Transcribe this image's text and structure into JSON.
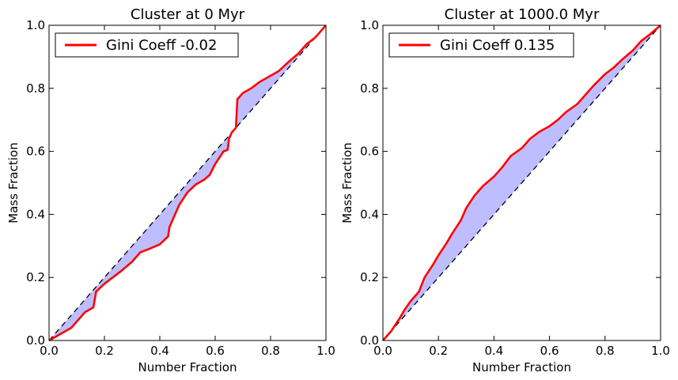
{
  "chart_data": [
    {
      "type": "line",
      "title": "Cluster at 0 Myr",
      "xlabel": "Number Fraction",
      "ylabel": "Mass Fraction",
      "xlim": [
        0.0,
        1.0
      ],
      "ylim": [
        0.0,
        1.0
      ],
      "xticks": [
        "0.0",
        "0.2",
        "0.4",
        "0.6",
        "0.8",
        "1.0"
      ],
      "yticks": [
        "0.0",
        "0.2",
        "0.4",
        "0.6",
        "0.8",
        "1.0"
      ],
      "legend_position": "upper-left",
      "fill_between": true,
      "series": [
        {
          "name": "Gini Coeff -0.02",
          "color": "#ff0000",
          "x": [
            0.0,
            0.02,
            0.05,
            0.08,
            0.1,
            0.13,
            0.16,
            0.165,
            0.17,
            0.2,
            0.23,
            0.26,
            0.3,
            0.33,
            0.36,
            0.4,
            0.43,
            0.435,
            0.44,
            0.47,
            0.5,
            0.53,
            0.56,
            0.58,
            0.6,
            0.63,
            0.645,
            0.65,
            0.66,
            0.675,
            0.68,
            0.69,
            0.7,
            0.73,
            0.76,
            0.8,
            0.83,
            0.86,
            0.9,
            0.93,
            0.96,
            1.0
          ],
          "y": [
            0.0,
            0.01,
            0.025,
            0.04,
            0.06,
            0.09,
            0.105,
            0.13,
            0.155,
            0.18,
            0.2,
            0.22,
            0.25,
            0.28,
            0.29,
            0.305,
            0.33,
            0.36,
            0.37,
            0.43,
            0.47,
            0.495,
            0.51,
            0.525,
            0.56,
            0.6,
            0.605,
            0.64,
            0.66,
            0.675,
            0.765,
            0.775,
            0.785,
            0.8,
            0.82,
            0.84,
            0.855,
            0.88,
            0.91,
            0.94,
            0.96,
            1.0
          ]
        },
        {
          "name": "",
          "color": "#000000",
          "style": "dashed",
          "x": [
            0.0,
            1.0
          ],
          "y": [
            0.0,
            1.0
          ]
        }
      ]
    },
    {
      "type": "line",
      "title": "Cluster at 1000.0 Myr",
      "xlabel": "Number Fraction",
      "ylabel": "Mass Fraction",
      "xlim": [
        0.0,
        1.0
      ],
      "ylim": [
        0.0,
        1.0
      ],
      "xticks": [
        "0.0",
        "0.2",
        "0.4",
        "0.6",
        "0.8",
        "1.0"
      ],
      "yticks": [
        "0.0",
        "0.2",
        "0.4",
        "0.6",
        "0.8",
        "1.0"
      ],
      "legend_position": "upper-left",
      "fill_between": true,
      "series": [
        {
          "name": "Gini Coeff 0.135",
          "color": "#ff0000",
          "x": [
            0.0,
            0.03,
            0.06,
            0.08,
            0.1,
            0.13,
            0.15,
            0.18,
            0.2,
            0.23,
            0.25,
            0.28,
            0.3,
            0.33,
            0.36,
            0.4,
            0.43,
            0.46,
            0.5,
            0.53,
            0.56,
            0.6,
            0.63,
            0.66,
            0.7,
            0.73,
            0.76,
            0.8,
            0.83,
            0.86,
            0.9,
            0.93,
            0.96,
            1.0
          ],
          "y": [
            0.0,
            0.03,
            0.07,
            0.1,
            0.125,
            0.155,
            0.2,
            0.24,
            0.27,
            0.31,
            0.34,
            0.38,
            0.42,
            0.46,
            0.49,
            0.52,
            0.55,
            0.585,
            0.61,
            0.64,
            0.66,
            0.68,
            0.7,
            0.725,
            0.75,
            0.78,
            0.81,
            0.845,
            0.865,
            0.89,
            0.92,
            0.95,
            0.97,
            1.0
          ]
        },
        {
          "name": "",
          "color": "#000000",
          "style": "dashed",
          "x": [
            0.0,
            1.0
          ],
          "y": [
            0.0,
            1.0
          ]
        }
      ]
    }
  ],
  "colors": {
    "fill": "#bdbdff",
    "curve": "#ff0000",
    "diagonal": "#000000"
  }
}
